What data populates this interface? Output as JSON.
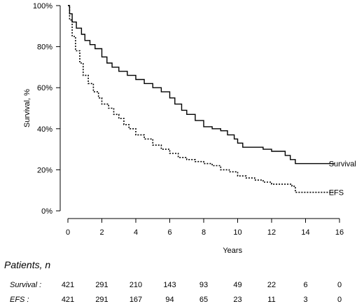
{
  "chart_data": {
    "type": "line",
    "title": "",
    "xlabel": "Years",
    "ylabel": "Survival, %",
    "xlim": [
      0,
      16
    ],
    "ylim": [
      0,
      100
    ],
    "x_ticks": [
      "0",
      "2",
      "4",
      "6",
      "8",
      "10",
      "12",
      "14",
      "16"
    ],
    "y_ticks": [
      "0%",
      "20%",
      "40%",
      "60%",
      "80%",
      "100%"
    ],
    "grid": false,
    "legend": "labels at end of lines",
    "series": [
      {
        "name": "Survival",
        "style": "solid",
        "color": "#000000",
        "step": true,
        "points": [
          [
            0,
            100
          ],
          [
            0.1,
            96
          ],
          [
            0.25,
            92
          ],
          [
            0.5,
            89
          ],
          [
            0.8,
            86
          ],
          [
            1.0,
            83
          ],
          [
            1.3,
            81
          ],
          [
            1.6,
            79
          ],
          [
            2.0,
            75
          ],
          [
            2.3,
            72
          ],
          [
            2.6,
            70
          ],
          [
            3.0,
            68
          ],
          [
            3.5,
            66
          ],
          [
            4.0,
            64
          ],
          [
            4.5,
            62
          ],
          [
            5.0,
            60
          ],
          [
            5.5,
            58
          ],
          [
            6.0,
            55
          ],
          [
            6.3,
            52
          ],
          [
            6.7,
            49
          ],
          [
            7.0,
            47
          ],
          [
            7.5,
            44
          ],
          [
            8.0,
            41
          ],
          [
            8.5,
            40
          ],
          [
            9.0,
            39
          ],
          [
            9.4,
            37
          ],
          [
            9.8,
            35
          ],
          [
            10.0,
            33
          ],
          [
            10.3,
            31
          ],
          [
            11.0,
            31
          ],
          [
            11.5,
            30
          ],
          [
            12.0,
            29
          ],
          [
            12.8,
            27
          ],
          [
            13.1,
            25
          ],
          [
            13.4,
            23
          ],
          [
            15.7,
            23
          ]
        ]
      },
      {
        "name": "EFS",
        "style": "dotted",
        "color": "#000000",
        "step": true,
        "points": [
          [
            0,
            100
          ],
          [
            0.1,
            93
          ],
          [
            0.25,
            85
          ],
          [
            0.45,
            78
          ],
          [
            0.7,
            72
          ],
          [
            0.9,
            66
          ],
          [
            1.2,
            62
          ],
          [
            1.5,
            58
          ],
          [
            1.8,
            55
          ],
          [
            2.0,
            52
          ],
          [
            2.4,
            50
          ],
          [
            2.7,
            47
          ],
          [
            3.0,
            45
          ],
          [
            3.3,
            42
          ],
          [
            3.6,
            40
          ],
          [
            4.0,
            37
          ],
          [
            4.5,
            35
          ],
          [
            5.0,
            32
          ],
          [
            5.5,
            30
          ],
          [
            6.0,
            28
          ],
          [
            6.5,
            26
          ],
          [
            7.0,
            25
          ],
          [
            7.5,
            24
          ],
          [
            8.0,
            23
          ],
          [
            8.5,
            22
          ],
          [
            9.0,
            20
          ],
          [
            9.5,
            19
          ],
          [
            10.0,
            17
          ],
          [
            10.5,
            16
          ],
          [
            11.0,
            15
          ],
          [
            11.5,
            14
          ],
          [
            12.0,
            13
          ],
          [
            13.2,
            12
          ],
          [
            13.4,
            9
          ],
          [
            15.7,
            9
          ]
        ]
      }
    ]
  },
  "risk_table": {
    "title": "Patients, n",
    "rows": [
      {
        "label": "Survival :",
        "values": [
          "421",
          "291",
          "210",
          "143",
          "93",
          "49",
          "22",
          "6",
          "0"
        ]
      },
      {
        "label": "EFS :",
        "values": [
          "421",
          "291",
          "167",
          "94",
          "65",
          "23",
          "11",
          "3",
          "0"
        ]
      }
    ]
  }
}
